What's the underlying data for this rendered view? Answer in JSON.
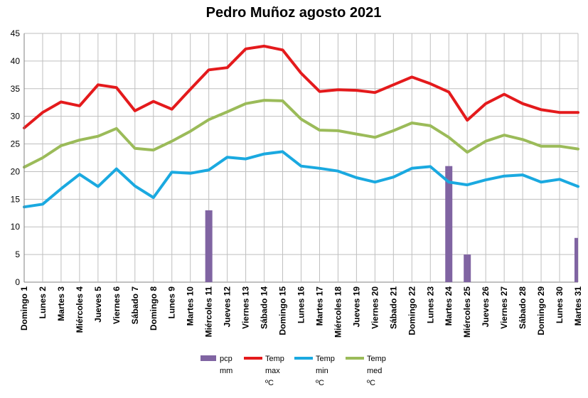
{
  "chart_data": {
    "type": "bar+line",
    "title": "Pedro Muñoz agosto 2021",
    "xlabel": "",
    "ylabel": "",
    "ylim": [
      0,
      45
    ],
    "yticks": [
      0,
      5,
      10,
      15,
      20,
      25,
      30,
      35,
      40,
      45
    ],
    "grid": true,
    "legend_position": "bottom",
    "categories": [
      "Domingo 1",
      "Lunes 2",
      "Martes 3",
      "Miércoles 4",
      "Jueves 5",
      "Viernes 6",
      "Sábado 7",
      "Domingo 8",
      "Lunes 9",
      "Martes 10",
      "Miércoles 11",
      "Jueves 12",
      "Viernes 13",
      "Sábado 14",
      "Domingo 15",
      "Lunes 16",
      "Martes 17",
      "Miércoles 18",
      "Jueves 19",
      "Viernes 20",
      "Sábado 21",
      "Domingo 22",
      "Lunes 23",
      "Martes 24",
      "Miércoles 25",
      "Jueves 26",
      "Viernes 27",
      "Sábado 28",
      "Domingo 29",
      "Lunes 30",
      "Martes 31"
    ],
    "series": [
      {
        "name": "pcp mm",
        "kind": "bar",
        "color": "#8064A2",
        "values": [
          0,
          0,
          0,
          0,
          0,
          0,
          0,
          0,
          0,
          0,
          13,
          0,
          0,
          0,
          0,
          0,
          0,
          0,
          0,
          0,
          0,
          0,
          0,
          21,
          5,
          0,
          0,
          0,
          0,
          0,
          8
        ]
      },
      {
        "name": "Temp max ºC",
        "kind": "line",
        "color": "#E41A1C",
        "values": [
          27.9,
          30.7,
          32.6,
          31.9,
          35.7,
          35.2,
          31.0,
          32.7,
          31.3,
          34.9,
          38.4,
          38.8,
          42.2,
          42.7,
          42.0,
          37.8,
          34.5,
          34.8,
          34.7,
          34.3,
          35.7,
          37.1,
          35.9,
          34.4,
          29.3,
          32.3,
          34.0,
          32.3,
          31.2,
          30.7,
          30.7
        ]
      },
      {
        "name": "Temp min ºC",
        "kind": "line",
        "color": "#1AA9E0",
        "values": [
          13.6,
          14.1,
          16.9,
          19.5,
          17.3,
          20.5,
          17.4,
          15.3,
          19.9,
          19.7,
          20.3,
          22.6,
          22.3,
          23.2,
          23.6,
          21.0,
          20.6,
          20.1,
          18.9,
          18.1,
          19.0,
          20.6,
          20.9,
          18.1,
          17.6,
          18.5,
          19.2,
          19.4,
          18.1,
          18.6,
          17.3
        ]
      },
      {
        "name": "Temp med ºC",
        "kind": "line",
        "color": "#9BBB59",
        "values": [
          20.8,
          22.5,
          24.7,
          25.7,
          26.4,
          27.8,
          24.2,
          23.9,
          25.5,
          27.3,
          29.4,
          30.8,
          32.3,
          32.9,
          32.8,
          29.5,
          27.5,
          27.4,
          26.8,
          26.2,
          27.4,
          28.8,
          28.3,
          26.2,
          23.5,
          25.5,
          26.6,
          25.8,
          24.6,
          24.6,
          24.1
        ]
      }
    ]
  }
}
